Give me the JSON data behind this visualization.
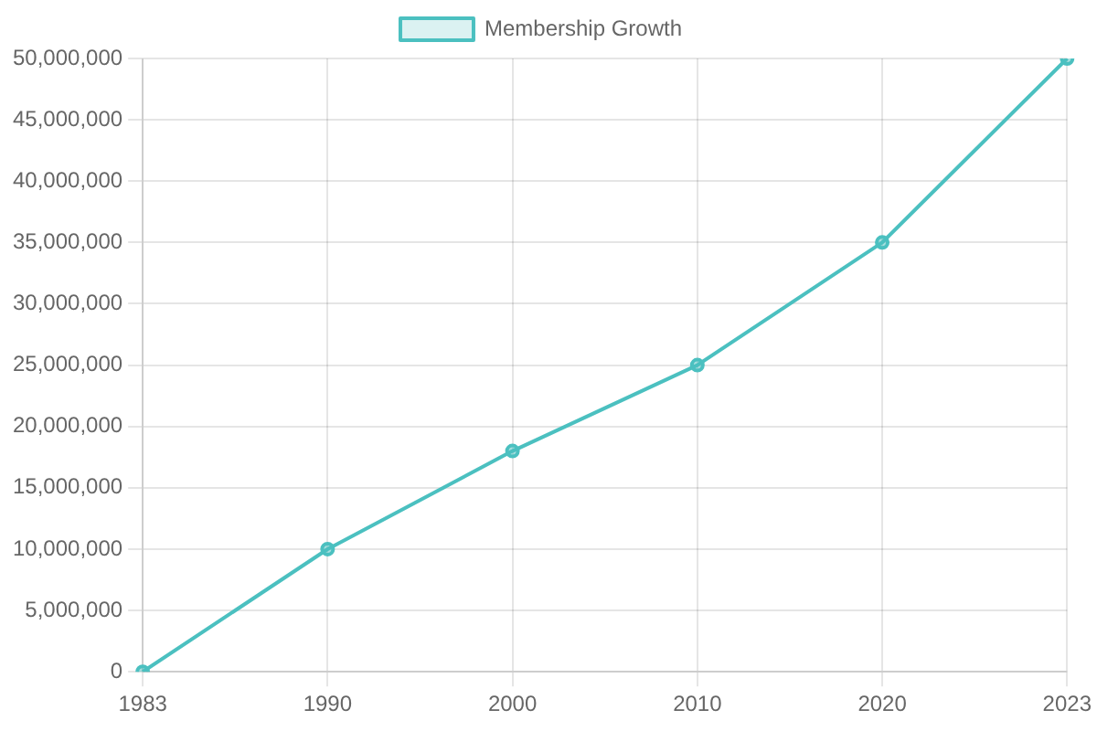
{
  "chart_data": {
    "type": "line",
    "categories": [
      "1983",
      "1990",
      "2000",
      "2010",
      "2020",
      "2023"
    ],
    "series": [
      {
        "name": "Membership Growth",
        "color": "#4bc0c0",
        "values": [
          0,
          10000000,
          18000000,
          25000000,
          35000000,
          50000000
        ]
      }
    ],
    "ylim": [
      0,
      50000000
    ],
    "yticks": [
      {
        "value": 0,
        "label": "0"
      },
      {
        "value": 5000000,
        "label": "5,000,000"
      },
      {
        "value": 10000000,
        "label": "10,000,000"
      },
      {
        "value": 15000000,
        "label": "15,000,000"
      },
      {
        "value": 20000000,
        "label": "20,000,000"
      },
      {
        "value": 25000000,
        "label": "25,000,000"
      },
      {
        "value": 30000000,
        "label": "30,000,000"
      },
      {
        "value": 35000000,
        "label": "35,000,000"
      },
      {
        "value": 40000000,
        "label": "40,000,000"
      },
      {
        "value": 45000000,
        "label": "45,000,000"
      },
      {
        "value": 50000000,
        "label": "50,000,000"
      }
    ],
    "grid": true,
    "legend": "top",
    "marker": "circle"
  }
}
